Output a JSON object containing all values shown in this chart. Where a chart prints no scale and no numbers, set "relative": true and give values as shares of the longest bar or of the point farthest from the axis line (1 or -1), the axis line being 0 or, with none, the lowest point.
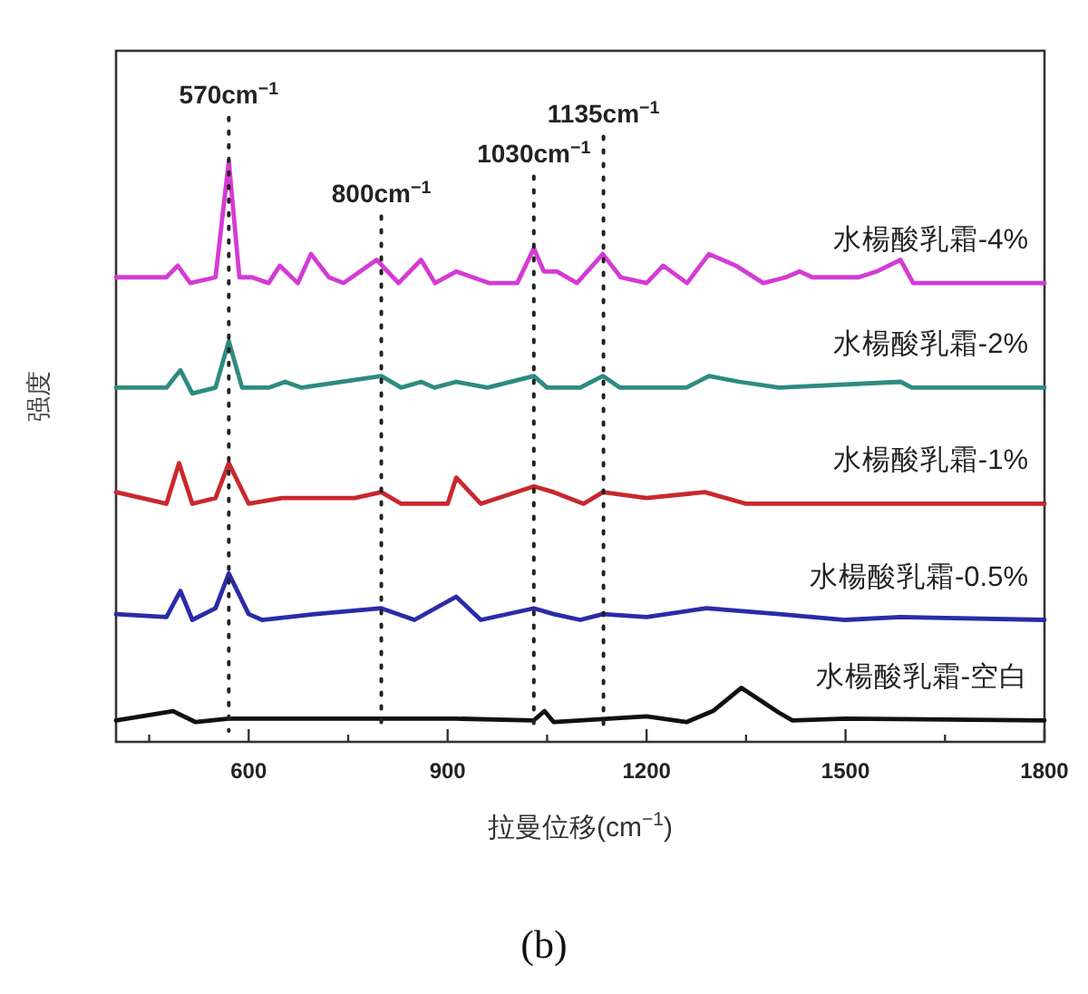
{
  "chart_data": {
    "type": "line",
    "relative": true,
    "xlabel": "拉曼位移(cm$^{−1}$)",
    "ylabel": "强度",
    "xlim": [
      400,
      1800
    ],
    "xticks": [
      {
        "value": 450,
        "label": null
      },
      600,
      {
        "value": 750,
        "label": null
      },
      900,
      {
        "value": 1050,
        "label": null
      },
      1200,
      {
        "value": 1350,
        "label": null
      },
      1500,
      {
        "value": 1650,
        "label": null
      },
      1800
    ],
    "grid": false,
    "legend": false,
    "line_style": "solid",
    "series": [
      {
        "name": "水楊酸乳霜-4%",
        "color": "#d43bd4",
        "x": [
          400,
          476,
          493,
          512,
          550,
          570,
          586,
          605,
          630,
          647,
          674,
          694,
          721,
          743,
          793,
          826,
          860,
          881,
          913,
          963,
          1005,
          1030,
          1045,
          1065,
          1095,
          1134,
          1161,
          1200,
          1225,
          1261,
          1294,
          1335,
          1376,
          1410,
          1431,
          1450,
          1520,
          1547,
          1583,
          1602,
          1707,
          1800
        ],
        "values": [
          0.8,
          0.8,
          0.82,
          0.79,
          0.8,
          1.0,
          0.8,
          0.8,
          0.79,
          0.82,
          0.79,
          0.84,
          0.8,
          0.79,
          0.83,
          0.79,
          0.83,
          0.79,
          0.81,
          0.79,
          0.79,
          0.85,
          0.81,
          0.81,
          0.79,
          0.84,
          0.8,
          0.79,
          0.82,
          0.79,
          0.84,
          0.82,
          0.79,
          0.8,
          0.81,
          0.8,
          0.8,
          0.81,
          0.83,
          0.79,
          0.79,
          0.79
        ]
      },
      {
        "name": "水楊酸乳霜-2%",
        "color": "#2e8b80",
        "x": [
          400,
          476,
          497,
          515,
          550,
          570,
          590,
          630,
          655,
          680,
          800,
          830,
          860,
          880,
          913,
          960,
          1030,
          1050,
          1100,
          1134,
          1160,
          1260,
          1294,
          1340,
          1400,
          1583,
          1600,
          1800
        ],
        "values": [
          0.61,
          0.61,
          0.64,
          0.6,
          0.61,
          0.69,
          0.61,
          0.61,
          0.62,
          0.61,
          0.63,
          0.61,
          0.62,
          0.61,
          0.62,
          0.61,
          0.63,
          0.61,
          0.61,
          0.63,
          0.61,
          0.61,
          0.63,
          0.62,
          0.61,
          0.62,
          0.61,
          0.61
        ]
      },
      {
        "name": "水楊酸乳霜-1%",
        "color": "#c8282d",
        "x": [
          400,
          476,
          495,
          515,
          550,
          570,
          600,
          650,
          760,
          800,
          830,
          900,
          913,
          950,
          1030,
          1060,
          1105,
          1134,
          1200,
          1288,
          1350,
          1500,
          1800
        ],
        "values": [
          0.43,
          0.41,
          0.48,
          0.41,
          0.42,
          0.48,
          0.41,
          0.42,
          0.42,
          0.43,
          0.41,
          0.41,
          0.455,
          0.41,
          0.44,
          0.43,
          0.41,
          0.43,
          0.42,
          0.43,
          0.41,
          0.41,
          0.41
        ]
      },
      {
        "name": "水楊酸乳霜-0.5%",
        "color": "#2b2ba8",
        "x": [
          400,
          476,
          497,
          515,
          550,
          570,
          600,
          620,
          700,
          800,
          850,
          913,
          950,
          1030,
          1060,
          1100,
          1134,
          1200,
          1290,
          1400,
          1500,
          1583,
          1800
        ],
        "values": [
          0.22,
          0.215,
          0.26,
          0.21,
          0.23,
          0.29,
          0.22,
          0.21,
          0.22,
          0.23,
          0.21,
          0.25,
          0.21,
          0.23,
          0.22,
          0.21,
          0.22,
          0.215,
          0.23,
          0.22,
          0.21,
          0.215,
          0.21
        ]
      },
      {
        "name": "水楊酸乳霜-空白",
        "color": "#111111",
        "x": [
          400,
          486,
          520,
          570,
          800,
          913,
          1030,
          1046,
          1060,
          1200,
          1260,
          1300,
          1343,
          1400,
          1420,
          1500,
          1800
        ],
        "values": [
          0.037,
          0.053,
          0.034,
          0.04,
          0.04,
          0.04,
          0.037,
          0.053,
          0.034,
          0.044,
          0.034,
          0.053,
          0.093,
          0.05,
          0.037,
          0.04,
          0.037
        ]
      }
    ],
    "ref_lines": [
      {
        "axis": "x",
        "value": 570,
        "label": "570cm$^{−1}$",
        "color": "#222222",
        "line_style": "dotted"
      },
      {
        "axis": "x",
        "value": 800,
        "label": "800cm$^{−1}$",
        "color": "#222222",
        "line_style": "dotted"
      },
      {
        "axis": "x",
        "value": 1030,
        "label": "1030cm$^{−1}$",
        "color": "#222222",
        "line_style": "dotted"
      },
      {
        "axis": "x",
        "value": 1135,
        "label": "1135cm$^{−1}$",
        "color": "#222222",
        "line_style": "dotted"
      }
    ],
    "annotations": [
      "(b)"
    ]
  }
}
